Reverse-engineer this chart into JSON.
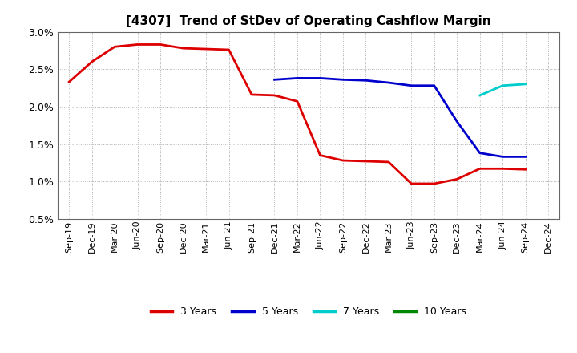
{
  "title": "[4307]  Trend of StDev of Operating Cashflow Margin",
  "ylim": [
    0.005,
    0.03
  ],
  "yticks": [
    0.005,
    0.01,
    0.015,
    0.02,
    0.025,
    0.03
  ],
  "background_color": "#ffffff",
  "grid_color": "#aaaaaa",
  "series": {
    "3 Years": {
      "color": "#dd0000",
      "x": [
        "Sep-19",
        "Dec-19",
        "Mar-20",
        "Jun-20",
        "Sep-20",
        "Dec-20",
        "Mar-21",
        "Jun-21",
        "Sep-21",
        "Dec-21",
        "Mar-22",
        "Jun-22",
        "Sep-22",
        "Dec-22",
        "Mar-23",
        "Jun-23",
        "Sep-23",
        "Dec-23",
        "Mar-24",
        "Jun-24",
        "Sep-24"
      ],
      "y": [
        0.0233,
        0.026,
        0.028,
        0.0283,
        0.0283,
        0.0278,
        0.0277,
        0.0276,
        0.0216,
        0.0215,
        0.0207,
        0.0135,
        0.0128,
        0.0127,
        0.0126,
        0.0097,
        0.0097,
        0.0103,
        0.0117,
        0.0117,
        0.0116
      ]
    },
    "5 Years": {
      "color": "#0000cc",
      "x": [
        "Dec-21",
        "Mar-22",
        "Jun-22",
        "Sep-22",
        "Dec-22",
        "Mar-23",
        "Jun-23",
        "Sep-23",
        "Dec-23",
        "Mar-24",
        "Jun-24",
        "Sep-24"
      ],
      "y": [
        0.0236,
        0.0238,
        0.0238,
        0.0236,
        0.0235,
        0.0232,
        0.0228,
        0.0228,
        0.018,
        0.0138,
        0.0133,
        0.0133
      ]
    },
    "7 Years": {
      "color": "#00cccc",
      "x": [
        "Mar-24",
        "Jun-24",
        "Sep-24"
      ],
      "y": [
        0.0215,
        0.0228,
        0.023
      ]
    },
    "10 Years": {
      "color": "#008800",
      "x": [],
      "y": []
    }
  },
  "legend_labels": [
    "3 Years",
    "5 Years",
    "7 Years",
    "10 Years"
  ],
  "legend_colors": [
    "#dd0000",
    "#0000cc",
    "#00cccc",
    "#008800"
  ],
  "xtick_labels": [
    "Sep-19",
    "Dec-19",
    "Mar-20",
    "Jun-20",
    "Sep-20",
    "Dec-20",
    "Mar-21",
    "Jun-21",
    "Sep-21",
    "Dec-21",
    "Mar-22",
    "Jun-22",
    "Sep-22",
    "Dec-22",
    "Mar-23",
    "Jun-23",
    "Sep-23",
    "Dec-23",
    "Mar-24",
    "Jun-24",
    "Sep-24",
    "Dec-24"
  ],
  "title_fontsize": 11,
  "tick_fontsize": 8,
  "legend_fontsize": 9,
  "linewidth": 2.0
}
